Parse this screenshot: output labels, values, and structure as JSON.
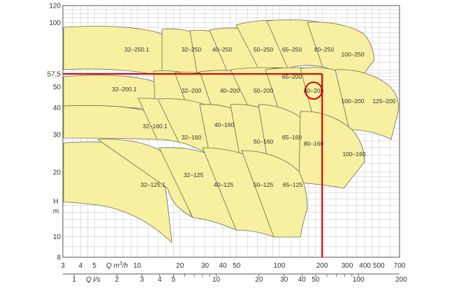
{
  "chart_data": {
    "type": "area",
    "axes": {
      "y_scale": "log",
      "x_scale": "log",
      "y_ticks": [
        8,
        10,
        20,
        30,
        40,
        50,
        100,
        120
      ],
      "x_q_m3h_ticks": [
        3,
        4,
        5,
        10,
        20,
        30,
        40,
        50,
        100,
        200,
        300,
        400,
        500,
        700
      ],
      "x_q_m3h_ticks_shown": [
        "3",
        "4",
        "5",
        "10",
        "20",
        "30",
        "40",
        "50",
        "100",
        "200",
        "300",
        "400",
        "500",
        "700"
      ],
      "x_q_ls_ticks": [
        "1",
        "2",
        "3",
        "4",
        "5",
        "10",
        "20",
        "30",
        "40",
        "50",
        "100",
        "200"
      ],
      "grid": true
    },
    "texts": {
      "h_label": "H",
      "m_label": "m",
      "q_m3h_prefix": "Q m",
      "q_m3h_sup": "3",
      "q_m3h_suffix": "/h",
      "q_ls_label": "Q l/s"
    },
    "highlight": {
      "h_value": 57.5,
      "h_value_label": "57,5",
      "q_value": 200,
      "selected_pump": "80-200",
      "line_color": "#dd0000"
    },
    "pumps": [
      {
        "name": "32–250.1"
      },
      {
        "name": "32–250"
      },
      {
        "name": "40–250"
      },
      {
        "name": "50–250"
      },
      {
        "name": "65–250"
      },
      {
        "name": "80–250"
      },
      {
        "name": "100–250"
      },
      {
        "name": "32–200.1"
      },
      {
        "name": "32–200"
      },
      {
        "name": "40–200"
      },
      {
        "name": "50–200"
      },
      {
        "name": "65–200"
      },
      {
        "name": "80–200"
      },
      {
        "name": "100–200"
      },
      {
        "name": "125–200"
      },
      {
        "name": "32–160.1"
      },
      {
        "name": "32–160"
      },
      {
        "name": "40–160"
      },
      {
        "name": "50–160"
      },
      {
        "name": "65–160"
      },
      {
        "name": "80–160"
      },
      {
        "name": "100–160"
      },
      {
        "name": "32–125.1"
      },
      {
        "name": "32–125"
      },
      {
        "name": "40–125"
      },
      {
        "name": "50–125"
      },
      {
        "name": "65–125"
      }
    ],
    "colors": {
      "fill": "#f7f0a0",
      "stroke": "#6a6a55",
      "grid": "#c4c4c4",
      "axis": "#555555"
    }
  }
}
